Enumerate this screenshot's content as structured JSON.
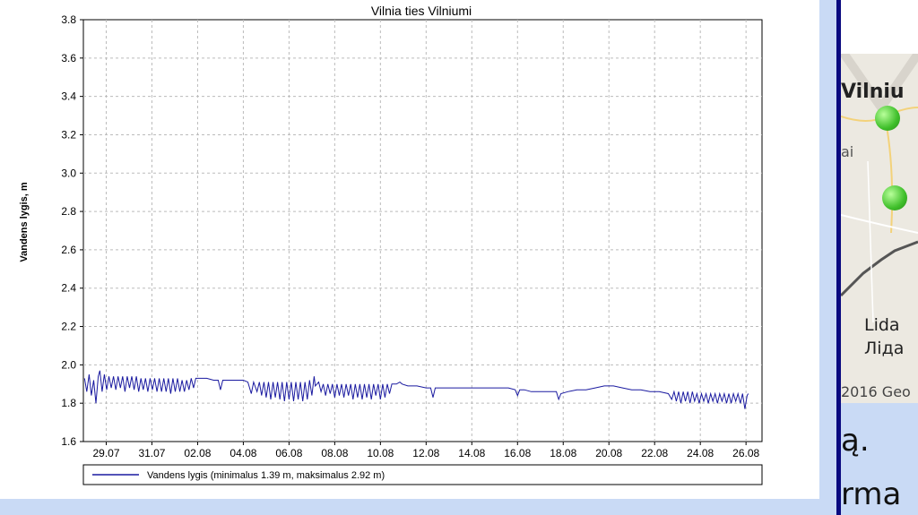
{
  "chart_data": {
    "type": "line",
    "title": "Vilnia ties Vilniumi",
    "ylabel": "Vandens lygis, m",
    "xlabel": "",
    "ylim": [
      1.6,
      3.8
    ],
    "yticks": [
      "1.6",
      "1.8",
      "2.0",
      "2.2",
      "2.4",
      "2.6",
      "2.8",
      "3.0",
      "3.2",
      "3.4",
      "3.6",
      "3.8"
    ],
    "xlim": [
      0,
      29.7
    ],
    "xticks": [
      {
        "label": "29.07",
        "x": 1
      },
      {
        "label": "31.07",
        "x": 3
      },
      {
        "label": "02.08",
        "x": 5
      },
      {
        "label": "04.08",
        "x": 7
      },
      {
        "label": "06.08",
        "x": 9
      },
      {
        "label": "08.08",
        "x": 11
      },
      {
        "label": "10.08",
        "x": 13
      },
      {
        "label": "12.08",
        "x": 15
      },
      {
        "label": "14.08",
        "x": 17
      },
      {
        "label": "16.08",
        "x": 19
      },
      {
        "label": "18.08",
        "x": 21
      },
      {
        "label": "20.08",
        "x": 23
      },
      {
        "label": "22.08",
        "x": 25
      },
      {
        "label": "24.08",
        "x": 27
      },
      {
        "label": "26.08",
        "x": 29
      }
    ],
    "grid": true,
    "legend_position": "bottom",
    "series": [
      {
        "name": "Vandens lygis (minimalus 1.39 m, maksimalus 2.92 m)",
        "color": "#1a1aa0",
        "points": [
          [
            0.05,
            1.93
          ],
          [
            0.15,
            1.86
          ],
          [
            0.25,
            1.95
          ],
          [
            0.35,
            1.84
          ],
          [
            0.45,
            1.92
          ],
          [
            0.55,
            1.8
          ],
          [
            0.65,
            1.94
          ],
          [
            0.72,
            1.97
          ],
          [
            0.82,
            1.86
          ],
          [
            0.92,
            1.95
          ],
          [
            1.02,
            1.87
          ],
          [
            1.12,
            1.94
          ],
          [
            1.22,
            1.88
          ],
          [
            1.32,
            1.94
          ],
          [
            1.42,
            1.87
          ],
          [
            1.52,
            1.94
          ],
          [
            1.62,
            1.88
          ],
          [
            1.72,
            1.94
          ],
          [
            1.82,
            1.86
          ],
          [
            1.92,
            1.94
          ],
          [
            2.02,
            1.88
          ],
          [
            2.12,
            1.94
          ],
          [
            2.22,
            1.87
          ],
          [
            2.32,
            1.94
          ],
          [
            2.42,
            1.86
          ],
          [
            2.52,
            1.93
          ],
          [
            2.62,
            1.87
          ],
          [
            2.72,
            1.93
          ],
          [
            2.82,
            1.86
          ],
          [
            2.92,
            1.93
          ],
          [
            3.02,
            1.87
          ],
          [
            3.12,
            1.93
          ],
          [
            3.22,
            1.86
          ],
          [
            3.32,
            1.93
          ],
          [
            3.42,
            1.86
          ],
          [
            3.52,
            1.93
          ],
          [
            3.62,
            1.86
          ],
          [
            3.72,
            1.93
          ],
          [
            3.82,
            1.85
          ],
          [
            3.92,
            1.93
          ],
          [
            4.02,
            1.86
          ],
          [
            4.12,
            1.93
          ],
          [
            4.22,
            1.86
          ],
          [
            4.32,
            1.92
          ],
          [
            4.42,
            1.86
          ],
          [
            4.52,
            1.92
          ],
          [
            4.62,
            1.87
          ],
          [
            4.72,
            1.93
          ],
          [
            4.82,
            1.88
          ],
          [
            4.92,
            1.93
          ],
          [
            5.1,
            1.93
          ],
          [
            5.4,
            1.93
          ],
          [
            5.7,
            1.92
          ],
          [
            5.9,
            1.92
          ],
          [
            6.0,
            1.87
          ],
          [
            6.1,
            1.92
          ],
          [
            6.5,
            1.92
          ],
          [
            7.0,
            1.92
          ],
          [
            7.2,
            1.91
          ],
          [
            7.35,
            1.85
          ],
          [
            7.45,
            1.91
          ],
          [
            7.6,
            1.86
          ],
          [
            7.7,
            1.91
          ],
          [
            7.8,
            1.84
          ],
          [
            7.9,
            1.91
          ],
          [
            8.0,
            1.83
          ],
          [
            8.1,
            1.91
          ],
          [
            8.2,
            1.82
          ],
          [
            8.3,
            1.91
          ],
          [
            8.4,
            1.83
          ],
          [
            8.5,
            1.91
          ],
          [
            8.6,
            1.82
          ],
          [
            8.7,
            1.91
          ],
          [
            8.8,
            1.81
          ],
          [
            8.9,
            1.91
          ],
          [
            9.0,
            1.82
          ],
          [
            9.1,
            1.91
          ],
          [
            9.2,
            1.81
          ],
          [
            9.3,
            1.91
          ],
          [
            9.4,
            1.82
          ],
          [
            9.5,
            1.91
          ],
          [
            9.6,
            1.81
          ],
          [
            9.7,
            1.91
          ],
          [
            9.8,
            1.82
          ],
          [
            9.9,
            1.92
          ],
          [
            10.0,
            1.84
          ],
          [
            10.1,
            1.94
          ],
          [
            10.15,
            1.89
          ],
          [
            10.3,
            1.91
          ],
          [
            10.4,
            1.86
          ],
          [
            10.5,
            1.9
          ],
          [
            10.6,
            1.84
          ],
          [
            10.7,
            1.9
          ],
          [
            10.8,
            1.85
          ],
          [
            10.9,
            1.9
          ],
          [
            11.0,
            1.83
          ],
          [
            11.1,
            1.9
          ],
          [
            11.2,
            1.84
          ],
          [
            11.3,
            1.9
          ],
          [
            11.4,
            1.83
          ],
          [
            11.5,
            1.9
          ],
          [
            11.6,
            1.84
          ],
          [
            11.7,
            1.9
          ],
          [
            11.8,
            1.82
          ],
          [
            11.9,
            1.9
          ],
          [
            12.0,
            1.83
          ],
          [
            12.1,
            1.9
          ],
          [
            12.2,
            1.82
          ],
          [
            12.3,
            1.9
          ],
          [
            12.4,
            1.83
          ],
          [
            12.5,
            1.9
          ],
          [
            12.6,
            1.82
          ],
          [
            12.7,
            1.9
          ],
          [
            12.8,
            1.84
          ],
          [
            12.9,
            1.9
          ],
          [
            13.0,
            1.82
          ],
          [
            13.1,
            1.9
          ],
          [
            13.2,
            1.83
          ],
          [
            13.3,
            1.9
          ],
          [
            13.4,
            1.85
          ],
          [
            13.5,
            1.9
          ],
          [
            13.7,
            1.9
          ],
          [
            13.85,
            1.91
          ],
          [
            13.95,
            1.9
          ],
          [
            14.2,
            1.89
          ],
          [
            14.6,
            1.89
          ],
          [
            15.0,
            1.88
          ],
          [
            15.2,
            1.88
          ],
          [
            15.3,
            1.83
          ],
          [
            15.4,
            1.88
          ],
          [
            15.8,
            1.88
          ],
          [
            16.2,
            1.88
          ],
          [
            16.6,
            1.88
          ],
          [
            17.0,
            1.88
          ],
          [
            17.4,
            1.88
          ],
          [
            17.8,
            1.88
          ],
          [
            18.2,
            1.88
          ],
          [
            18.6,
            1.88
          ],
          [
            18.9,
            1.87
          ],
          [
            19.0,
            1.84
          ],
          [
            19.1,
            1.87
          ],
          [
            19.3,
            1.87
          ],
          [
            19.6,
            1.86
          ],
          [
            20.0,
            1.86
          ],
          [
            20.4,
            1.86
          ],
          [
            20.7,
            1.86
          ],
          [
            20.8,
            1.82
          ],
          [
            20.9,
            1.85
          ],
          [
            21.2,
            1.86
          ],
          [
            21.6,
            1.87
          ],
          [
            22.0,
            1.87
          ],
          [
            22.4,
            1.88
          ],
          [
            22.8,
            1.89
          ],
          [
            23.2,
            1.89
          ],
          [
            23.6,
            1.88
          ],
          [
            24.0,
            1.87
          ],
          [
            24.4,
            1.87
          ],
          [
            24.8,
            1.86
          ],
          [
            25.2,
            1.86
          ],
          [
            25.6,
            1.85
          ],
          [
            25.75,
            1.82
          ],
          [
            25.85,
            1.86
          ],
          [
            25.95,
            1.81
          ],
          [
            26.05,
            1.86
          ],
          [
            26.15,
            1.8
          ],
          [
            26.25,
            1.86
          ],
          [
            26.35,
            1.81
          ],
          [
            26.45,
            1.86
          ],
          [
            26.55,
            1.8
          ],
          [
            26.65,
            1.86
          ],
          [
            26.75,
            1.81
          ],
          [
            26.85,
            1.85
          ],
          [
            26.95,
            1.8
          ],
          [
            27.05,
            1.85
          ],
          [
            27.15,
            1.81
          ],
          [
            27.25,
            1.85
          ],
          [
            27.35,
            1.8
          ],
          [
            27.45,
            1.85
          ],
          [
            27.55,
            1.81
          ],
          [
            27.65,
            1.85
          ],
          [
            27.75,
            1.8
          ],
          [
            27.85,
            1.85
          ],
          [
            27.95,
            1.81
          ],
          [
            28.05,
            1.85
          ],
          [
            28.15,
            1.8
          ],
          [
            28.25,
            1.85
          ],
          [
            28.35,
            1.8
          ],
          [
            28.45,
            1.85
          ],
          [
            28.55,
            1.81
          ],
          [
            28.65,
            1.85
          ],
          [
            28.75,
            1.8
          ],
          [
            28.85,
            1.85
          ],
          [
            28.95,
            1.77
          ],
          [
            29.05,
            1.84
          ],
          [
            29.1,
            1.85
          ]
        ]
      }
    ]
  },
  "map": {
    "labels": [
      "Vilniu",
      "ai",
      "Lida",
      "Ліда",
      "2016 Geo"
    ],
    "marker_color": "#3fbf2a"
  },
  "fragments": {
    "line1": "ą.",
    "line2": "rma"
  }
}
